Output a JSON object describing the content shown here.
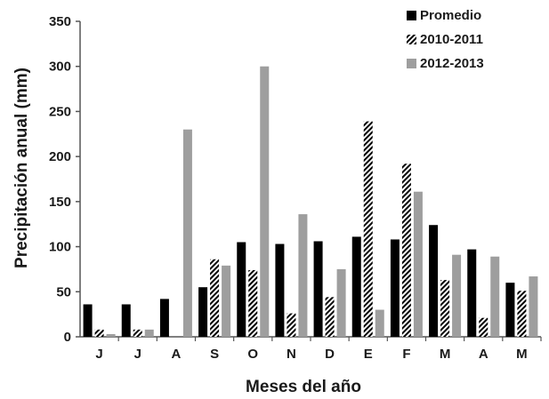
{
  "chart_data": {
    "type": "bar",
    "title": "",
    "xlabel": "Meses del año",
    "ylabel": "Precipitación  anual (mm)",
    "categories": [
      "J",
      "J",
      "A",
      "S",
      "O",
      "N",
      "D",
      "E",
      "F",
      "M",
      "A",
      "M"
    ],
    "ylim": [
      0,
      350
    ],
    "yticks": [
      "0",
      "50",
      "100",
      "150",
      "200",
      "250",
      "300",
      "350"
    ],
    "legend_position": "top-right",
    "grid": false,
    "series": [
      {
        "name": "Promedio",
        "pattern": "solid",
        "color": "#000000",
        "values": [
          36,
          36,
          42,
          55,
          105,
          103,
          106,
          111,
          108,
          124,
          97,
          60
        ]
      },
      {
        "name": "2010-2011",
        "pattern": "hatched",
        "color": "#000000",
        "values": [
          8,
          8,
          0,
          86,
          74,
          26,
          44,
          239,
          192,
          63,
          21,
          51
        ]
      },
      {
        "name": "2012-2013",
        "pattern": "solid",
        "color": "#9e9e9e",
        "values": [
          3,
          8,
          230,
          79,
          300,
          136,
          75,
          30,
          161,
          91,
          89,
          67
        ]
      }
    ]
  }
}
